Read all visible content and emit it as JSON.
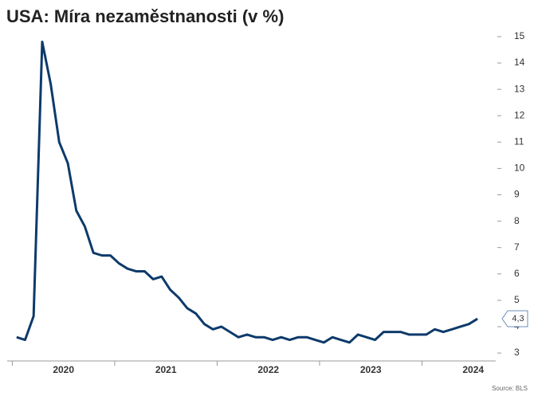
{
  "chart_data": {
    "type": "line",
    "title": "USA: Míra nezaměstnanosti (v %)",
    "source": "Source: BLS",
    "x": [
      2020.042,
      2020.125,
      2020.208,
      2020.292,
      2020.375,
      2020.458,
      2020.542,
      2020.625,
      2020.708,
      2020.792,
      2020.875,
      2020.958,
      2021.042,
      2021.125,
      2021.208,
      2021.292,
      2021.375,
      2021.458,
      2021.542,
      2021.625,
      2021.708,
      2021.792,
      2021.875,
      2021.958,
      2022.042,
      2022.125,
      2022.208,
      2022.292,
      2022.375,
      2022.458,
      2022.542,
      2022.625,
      2022.708,
      2022.792,
      2022.875,
      2022.958,
      2023.042,
      2023.125,
      2023.208,
      2023.292,
      2023.375,
      2023.458,
      2023.542,
      2023.625,
      2023.708,
      2023.792,
      2023.875,
      2023.958,
      2024.042,
      2024.125,
      2024.208,
      2024.292,
      2024.375,
      2024.458,
      2024.542
    ],
    "series": [
      {
        "name": "Míra nezaměstnanosti",
        "color": "#0d3a6b",
        "values": [
          3.6,
          3.5,
          4.4,
          14.8,
          13.2,
          11.0,
          10.2,
          8.4,
          7.8,
          6.8,
          6.7,
          6.7,
          6.4,
          6.2,
          6.1,
          6.1,
          5.8,
          5.9,
          5.4,
          5.1,
          4.7,
          4.5,
          4.1,
          3.9,
          4.0,
          3.8,
          3.6,
          3.7,
          3.6,
          3.6,
          3.5,
          3.6,
          3.5,
          3.6,
          3.6,
          3.5,
          3.4,
          3.6,
          3.5,
          3.4,
          3.7,
          3.6,
          3.5,
          3.8,
          3.8,
          3.8,
          3.7,
          3.7,
          3.7,
          3.9,
          3.8,
          3.9,
          4.0,
          4.1,
          4.3
        ]
      }
    ],
    "end_label": {
      "value": 4.3,
      "label": "4,3"
    },
    "xlim": [
      2019.95,
      2024.72
    ],
    "xticks": [
      {
        "value": 2020.5,
        "label": "2020"
      },
      {
        "value": 2021.5,
        "label": "2021"
      },
      {
        "value": 2022.5,
        "label": "2022"
      },
      {
        "value": 2023.5,
        "label": "2023"
      },
      {
        "value": 2024.5,
        "label": "2024"
      }
    ],
    "ylim": [
      2.7,
      15.3
    ],
    "yticks": [
      3,
      4,
      5,
      6,
      7,
      8,
      9,
      10,
      11,
      12,
      13,
      14,
      15
    ],
    "grid": false
  }
}
